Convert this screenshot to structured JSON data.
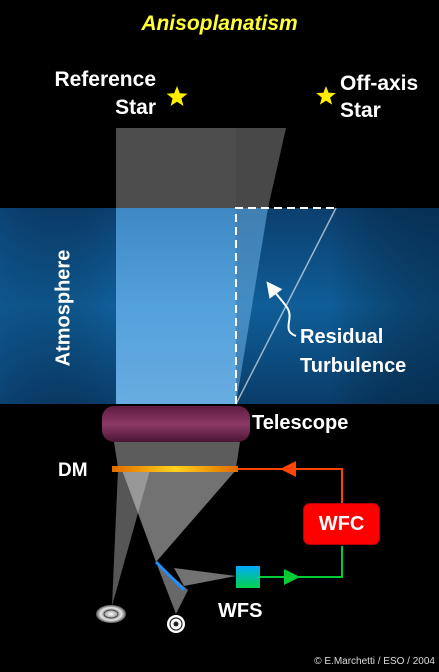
{
  "title": "Anisoplanatism",
  "stars": {
    "reference": "Reference Star",
    "off_axis": "Off-axis Star"
  },
  "labels": {
    "atmosphere": "Atmosphere",
    "residual": "Residual Turbulence",
    "telescope": "Telescope",
    "dm": "DM",
    "wfc": "WFC",
    "wfs": "WFS"
  },
  "credit": "© E.Marchetti / ESO / 2004",
  "colors": {
    "background": "#000000",
    "title": "#ffff33",
    "star": "#ffee00",
    "atmosphere": "#0e5a93",
    "telescope": "#7a2a52",
    "wfc": "#ff0000",
    "feedback_line": "#ff4400",
    "wfs_line": "#00cc33"
  }
}
